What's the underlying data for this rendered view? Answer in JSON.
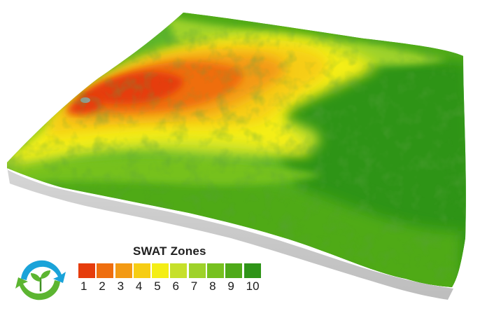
{
  "legend": {
    "title": "SWAT Zones",
    "zones": [
      {
        "label": "1",
        "color": "#e63c0c"
      },
      {
        "label": "2",
        "color": "#ef6e0e"
      },
      {
        "label": "3",
        "color": "#f39a14"
      },
      {
        "label": "4",
        "color": "#f6cd14"
      },
      {
        "label": "5",
        "color": "#f4ee16"
      },
      {
        "label": "6",
        "color": "#c6e02a"
      },
      {
        "label": "7",
        "color": "#9ed22a"
      },
      {
        "label": "8",
        "color": "#76c11f"
      },
      {
        "label": "9",
        "color": "#4faa19"
      },
      {
        "label": "10",
        "color": "#2f9418"
      }
    ]
  },
  "logo": {
    "icon": "recycle-seedling-icon",
    "ring_color": "#1aa3d9",
    "leaf_color": "#5cb531"
  },
  "map": {
    "base_color": "#c9c9c9"
  }
}
